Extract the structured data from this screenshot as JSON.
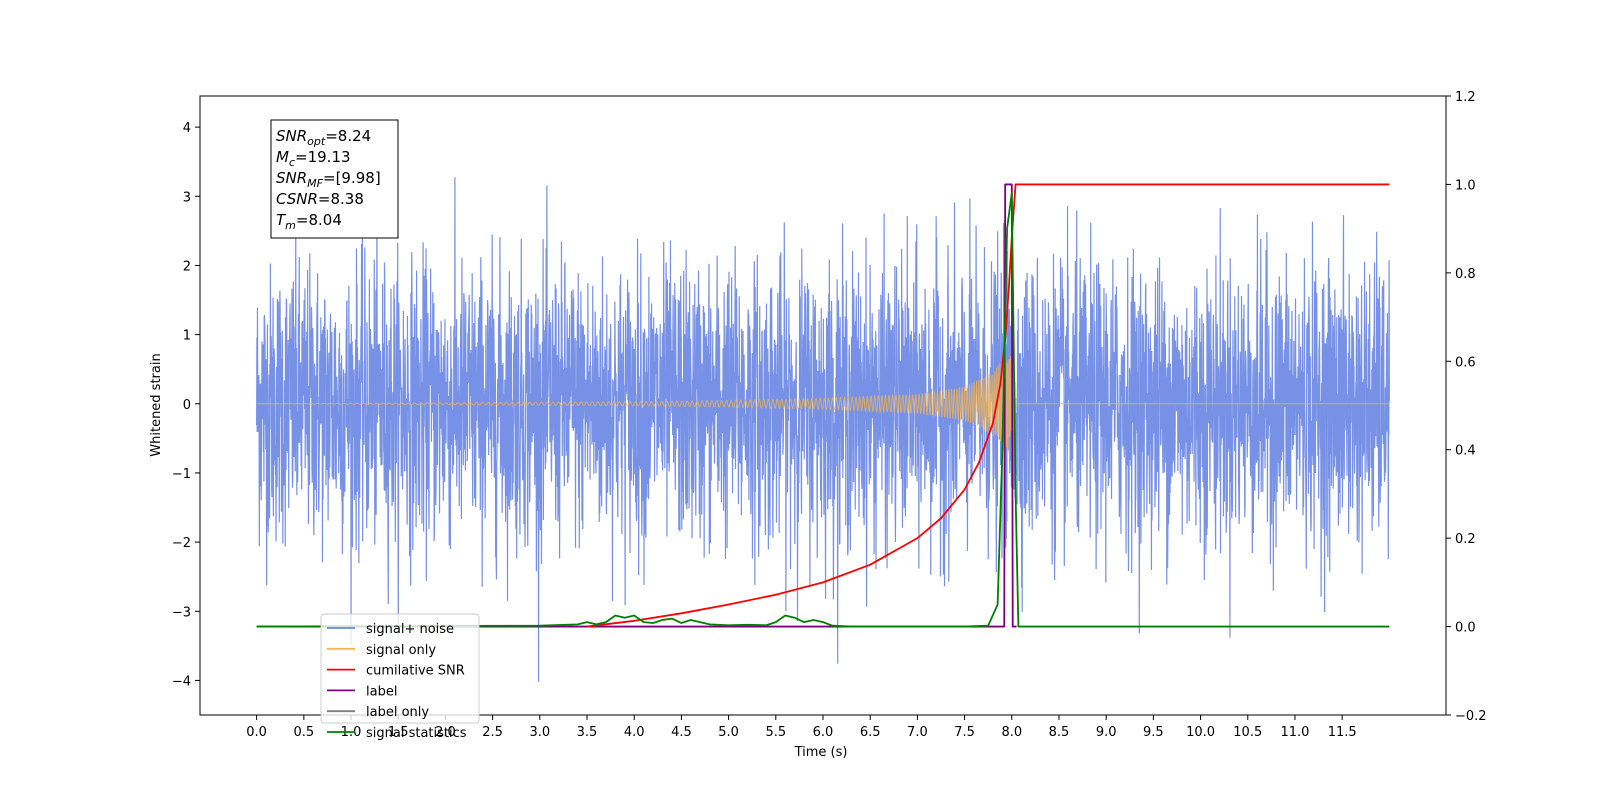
{
  "chart_data": {
    "type": "line",
    "xlabel": "Time (s)",
    "ylabel": "Whitened strain",
    "xlim": [
      -0.6,
      12.6
    ],
    "ylim": [
      -4.5,
      4.45
    ],
    "y2lim": [
      -0.2,
      1.2
    ],
    "x_ticks": [
      "0.0",
      "0.5",
      "1.0",
      "1.5",
      "2.0",
      "2.5",
      "3.0",
      "3.5",
      "4.0",
      "4.5",
      "5.0",
      "5.5",
      "6.0",
      "6.5",
      "7.0",
      "7.5",
      "8.0",
      "8.5",
      "9.0",
      "9.5",
      "10.0",
      "10.5",
      "11.0",
      "11.5"
    ],
    "y_ticks": [
      "4",
      "3",
      "2",
      "1",
      "0",
      "−1",
      "−2",
      "−3",
      "−4"
    ],
    "y2_ticks": [
      "1.2",
      "1.0",
      "0.8",
      "0.6",
      "0.4",
      "0.2",
      "0.0",
      "−0.2"
    ],
    "grid": false,
    "legend_placement": "lower-left",
    "info_box": {
      "lines": [
        {
          "name": "SNR",
          "sub": "opt",
          "value": "=8.24"
        },
        {
          "name": "M",
          "sub": "c",
          "value": "=19.13"
        },
        {
          "name": "SNR",
          "sub": "MF",
          "value": "=[9.98]"
        },
        {
          "name": "CSNR",
          "sub": "",
          "value": "=8.38"
        },
        {
          "name": "T",
          "sub": "m",
          "value": "=8.04"
        }
      ]
    },
    "series": [
      {
        "name": "signal+ noise",
        "color": "#6a88e3",
        "axis": "left",
        "kind": "noise",
        "x_range": [
          0.0,
          12.0
        ],
        "noise_sigma": 1.0,
        "typical_peak": 2.7,
        "max": 4.05,
        "min": -4.1
      },
      {
        "name": "signal only",
        "color": "#f5b54f",
        "axis": "left",
        "kind": "chirp",
        "x_range": [
          0.0,
          12.0
        ],
        "merger_time": 8.04,
        "envelope": {
          "x": [
            0,
            4,
            5,
            6,
            7,
            7.5,
            7.8,
            7.95,
            8.04
          ],
          "y": [
            0.0,
            0.03,
            0.05,
            0.08,
            0.14,
            0.25,
            0.45,
            0.75,
            0.6
          ]
        }
      },
      {
        "name": "cumilative SNR",
        "color": "#ff0000",
        "axis": "right",
        "x": [
          3.5,
          4.0,
          4.5,
          5.0,
          5.5,
          6.0,
          6.5,
          7.0,
          7.25,
          7.5,
          7.65,
          7.8,
          7.88,
          7.93,
          7.97,
          8.0,
          8.04,
          12.0
        ],
        "y": [
          0.0,
          0.013,
          0.03,
          0.05,
          0.072,
          0.1,
          0.14,
          0.2,
          0.245,
          0.31,
          0.37,
          0.46,
          0.55,
          0.65,
          0.77,
          0.88,
          1.0,
          1.0
        ]
      },
      {
        "name": "label",
        "color": "#7b007b",
        "axis": "right",
        "x": [
          0.0,
          7.92,
          7.93,
          8.0,
          8.01,
          8.05
        ],
        "y": [
          0.0,
          0.0,
          1.0,
          1.0,
          0.0,
          0.0
        ]
      },
      {
        "name": "label only",
        "color": "#7f7f7f",
        "axis": "right",
        "x": [],
        "y": []
      },
      {
        "name": "signal statistics",
        "color": "#007f00",
        "axis": "right",
        "x": [
          0.0,
          3.0,
          3.4,
          3.5,
          3.6,
          3.7,
          3.8,
          3.9,
          4.0,
          4.1,
          4.2,
          4.3,
          4.4,
          4.5,
          4.6,
          4.8,
          5.0,
          5.2,
          5.4,
          5.5,
          5.6,
          5.7,
          5.8,
          5.9,
          6.0,
          6.1,
          6.3,
          7.5,
          7.75,
          7.85,
          7.9,
          7.95,
          8.0,
          8.04,
          8.07,
          12.0
        ],
        "y": [
          0.0,
          0.002,
          0.005,
          0.01,
          0.005,
          0.01,
          0.025,
          0.02,
          0.025,
          0.01,
          0.008,
          0.015,
          0.018,
          0.008,
          0.015,
          0.005,
          0.003,
          0.004,
          0.003,
          0.01,
          0.025,
          0.02,
          0.01,
          0.015,
          0.01,
          0.002,
          0.0,
          0.0,
          0.002,
          0.05,
          0.4,
          0.9,
          0.98,
          0.3,
          0.0,
          0.0
        ]
      }
    ]
  }
}
